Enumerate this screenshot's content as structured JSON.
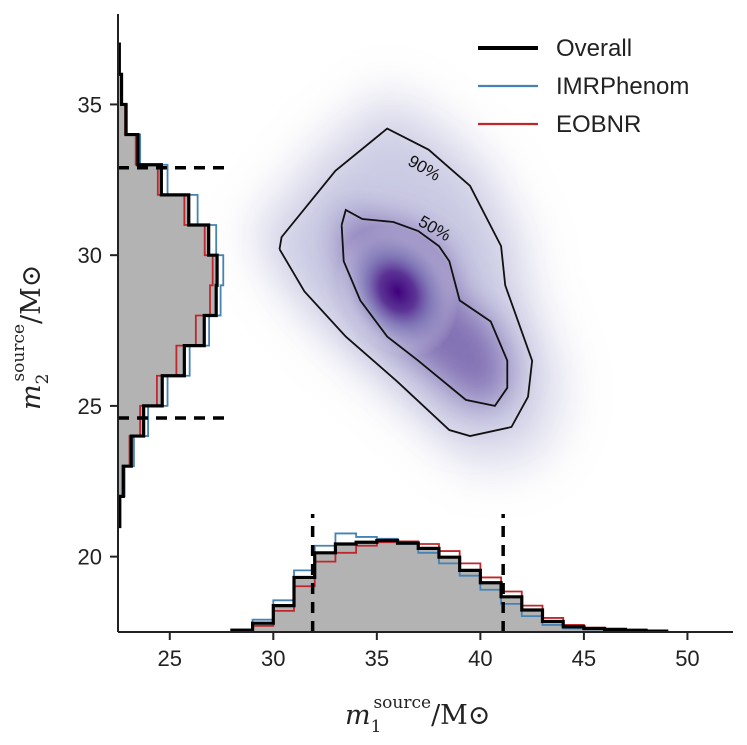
{
  "chart_data": {
    "type": "scatter",
    "subtype": "corner-plot-2d-density-with-marginal-histograms",
    "x_axis": {
      "label_main": "m",
      "label_subscript": "1",
      "label_superscript": "source",
      "label_unit": "/M",
      "label_unit_symbol": "⊙",
      "ticks": [
        25,
        30,
        35,
        40,
        45,
        50
      ],
      "range": [
        22.5,
        52.2
      ]
    },
    "y_axis": {
      "label_main": "m",
      "label_subscript": "2",
      "label_superscript": "source",
      "label_unit": "/M",
      "label_unit_symbol": "⊙",
      "ticks": [
        20,
        25,
        30,
        35
      ],
      "range": [
        17.5,
        38.0
      ]
    },
    "legend": {
      "placement": "top-right",
      "entries": [
        {
          "name": "Overall",
          "color": "#000000"
        },
        {
          "name": "IMRPhenom",
          "color": "#4682b4"
        },
        {
          "name": "EOBNR",
          "color": "#c0272d"
        }
      ]
    },
    "density": {
      "colormap": "purples",
      "peak": [
        36.0,
        28.8
      ],
      "contours": [
        {
          "label": "90%",
          "points": [
            [
              30.3,
              30.2
            ],
            [
              30.4,
              30.6
            ],
            [
              33.0,
              32.8
            ],
            [
              35.5,
              34.2
            ],
            [
              37.5,
              33.5
            ],
            [
              39.5,
              32.3
            ],
            [
              41.0,
              30.3
            ],
            [
              41.2,
              29.0
            ],
            [
              42.5,
              26.5
            ],
            [
              42.3,
              25.3
            ],
            [
              41.5,
              24.3
            ],
            [
              39.5,
              24.0
            ],
            [
              38.5,
              24.2
            ],
            [
              36.0,
              25.8
            ],
            [
              33.5,
              27.3
            ],
            [
              31.5,
              28.8
            ],
            [
              30.3,
              30.2
            ]
          ],
          "label_at": [
            37.3,
            32.9
          ]
        },
        {
          "label": "50%",
          "points": [
            [
              33.3,
              31.0
            ],
            [
              33.5,
              31.5
            ],
            [
              34.3,
              31.2
            ],
            [
              35.8,
              31.1
            ],
            [
              37.0,
              30.8
            ],
            [
              38.0,
              30.3
            ],
            [
              38.5,
              29.8
            ],
            [
              39.0,
              28.5
            ],
            [
              40.5,
              27.8
            ],
            [
              41.3,
              26.5
            ],
            [
              41.3,
              25.6
            ],
            [
              40.7,
              25.0
            ],
            [
              39.3,
              25.2
            ],
            [
              37.0,
              26.5
            ],
            [
              35.5,
              27.3
            ],
            [
              34.2,
              28.5
            ],
            [
              33.4,
              29.8
            ],
            [
              33.3,
              31.0
            ]
          ],
          "label_at": [
            37.8,
            30.9
          ]
        }
      ]
    },
    "credible_intervals": {
      "m1": [
        31.9,
        41.1
      ],
      "m2": [
        24.6,
        32.9
      ]
    },
    "m1_histogram": {
      "bin_edges": [
        28.0,
        29.0,
        30.0,
        31.0,
        32.0,
        33.0,
        34.0,
        35.0,
        36.0,
        37.0,
        38.0,
        39.0,
        40.0,
        41.0,
        42.0,
        43.0,
        44.0,
        45.0,
        46.0,
        47.0,
        48.0,
        49.0
      ],
      "density_ylim": [
        0,
        0.125
      ],
      "series": [
        {
          "name": "Overall",
          "values": [
            0.002,
            0.01,
            0.03,
            0.062,
            0.09,
            0.1,
            0.102,
            0.104,
            0.101,
            0.095,
            0.085,
            0.07,
            0.056,
            0.04,
            0.025,
            0.012,
            0.006,
            0.004,
            0.003,
            0.002,
            0.001
          ]
        },
        {
          "name": "IMRPhenom",
          "values": [
            0.003,
            0.014,
            0.036,
            0.07,
            0.098,
            0.112,
            0.108,
            0.106,
            0.1,
            0.09,
            0.078,
            0.064,
            0.048,
            0.032,
            0.018,
            0.008,
            0.004,
            0.003,
            0.002,
            0.001,
            0.001
          ]
        },
        {
          "name": "EOBNR",
          "values": [
            0.001,
            0.007,
            0.024,
            0.052,
            0.08,
            0.09,
            0.098,
            0.102,
            0.103,
            0.1,
            0.092,
            0.078,
            0.062,
            0.046,
            0.03,
            0.016,
            0.008,
            0.005,
            0.003,
            0.002,
            0.001
          ]
        }
      ]
    },
    "m2_histogram": {
      "bin_edges": [
        21.0,
        22.0,
        23.0,
        24.0,
        25.0,
        26.0,
        27.0,
        28.0,
        29.0,
        30.0,
        31.0,
        32.0,
        33.0,
        34.0,
        35.0,
        36.0,
        37.0
      ],
      "density_xlim": [
        0,
        0.26
      ],
      "series": [
        {
          "name": "Overall",
          "values": [
            0.004,
            0.012,
            0.03,
            0.058,
            0.1,
            0.15,
            0.195,
            0.222,
            0.224,
            0.205,
            0.16,
            0.098,
            0.045,
            0.018,
            0.008,
            0.003
          ]
        },
        {
          "name": "IMRPhenom",
          "values": [
            0.005,
            0.015,
            0.036,
            0.068,
            0.112,
            0.162,
            0.206,
            0.232,
            0.238,
            0.222,
            0.18,
            0.112,
            0.05,
            0.02,
            0.008,
            0.003
          ]
        },
        {
          "name": "EOBNR",
          "values": [
            0.003,
            0.01,
            0.026,
            0.05,
            0.088,
            0.132,
            0.176,
            0.208,
            0.214,
            0.196,
            0.15,
            0.09,
            0.04,
            0.016,
            0.007,
            0.002
          ]
        }
      ]
    }
  }
}
